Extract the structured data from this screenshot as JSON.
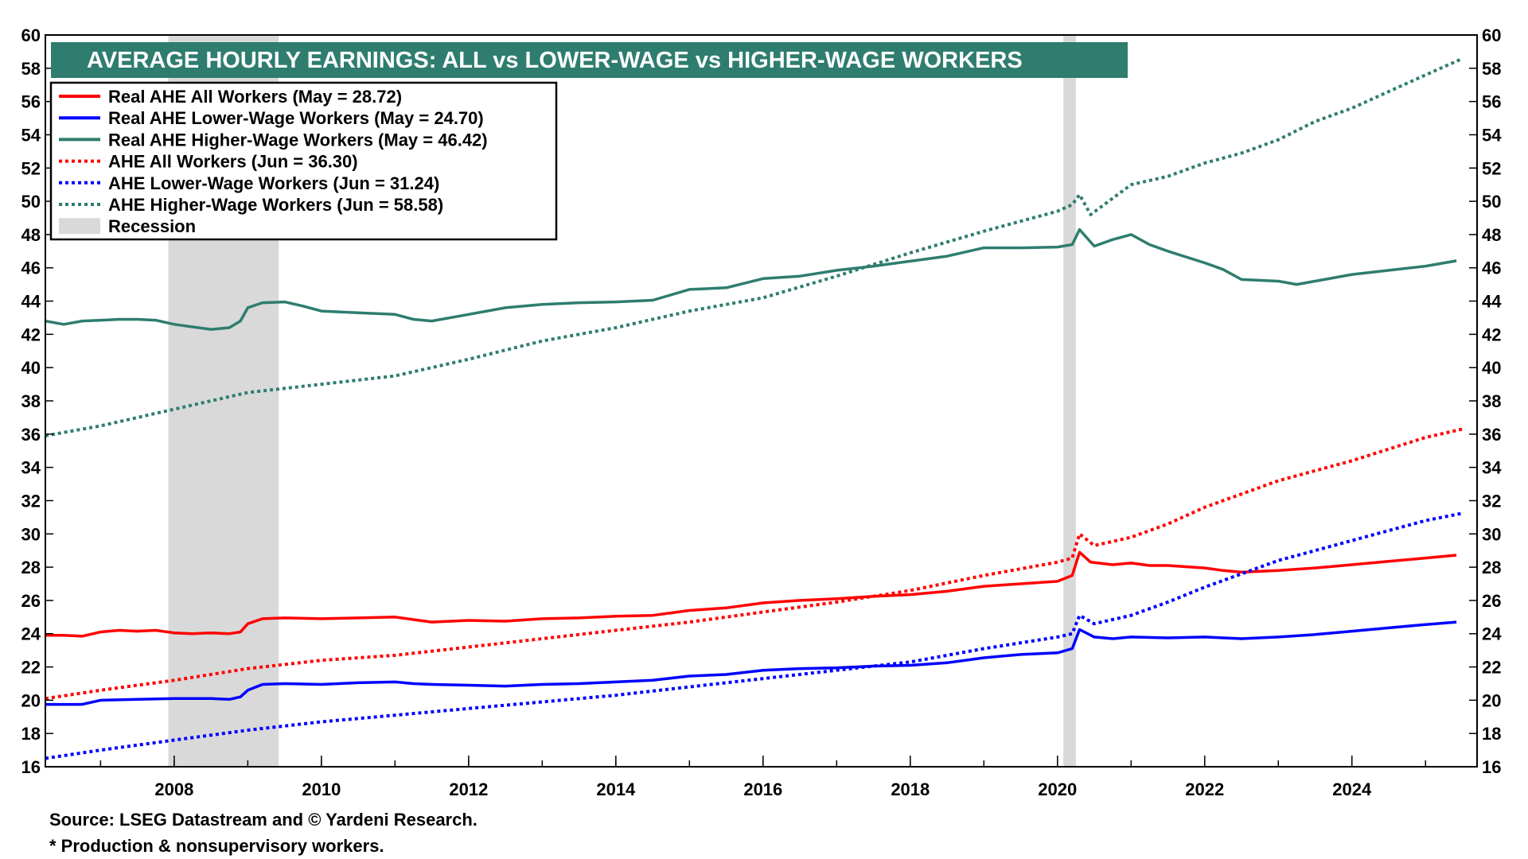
{
  "chart_data": {
    "type": "line",
    "title": "AVERAGE HOURLY EARNINGS: ALL vs LOWER-WAGE vs HIGHER-WAGE WORKERS",
    "ylim": [
      16,
      60
    ],
    "y_ticks": [
      "16",
      "18",
      "20",
      "22",
      "24",
      "26",
      "28",
      "30",
      "32",
      "34",
      "36",
      "38",
      "40",
      "42",
      "44",
      "46",
      "48",
      "50",
      "52",
      "54",
      "56",
      "58",
      "60"
    ],
    "xlim": [
      2006.25,
      2025.7
    ],
    "x_ticks": [
      "2008",
      "2010",
      "2012",
      "2014",
      "2016",
      "2018",
      "2020",
      "2022",
      "2024"
    ],
    "grid": false,
    "legend_position": "top-left",
    "recessions": [
      [
        2007.92,
        2009.42
      ],
      [
        2020.08,
        2020.25
      ]
    ],
    "series": [
      {
        "name": "Real AHE All Workers  (May = 28.72)",
        "color": "#ff0000",
        "style": "solid",
        "points": [
          [
            2006.25,
            23.9
          ],
          [
            2006.5,
            23.9
          ],
          [
            2006.75,
            23.85
          ],
          [
            2007,
            24.1
          ],
          [
            2007.25,
            24.2
          ],
          [
            2007.5,
            24.15
          ],
          [
            2007.75,
            24.2
          ],
          [
            2008,
            24.05
          ],
          [
            2008.25,
            24.0
          ],
          [
            2008.5,
            24.05
          ],
          [
            2008.75,
            24.0
          ],
          [
            2008.9,
            24.1
          ],
          [
            2009.0,
            24.6
          ],
          [
            2009.2,
            24.9
          ],
          [
            2009.5,
            24.95
          ],
          [
            2010,
            24.9
          ],
          [
            2010.5,
            24.95
          ],
          [
            2011,
            25.0
          ],
          [
            2011.25,
            24.85
          ],
          [
            2011.5,
            24.7
          ],
          [
            2012,
            24.8
          ],
          [
            2012.5,
            24.75
          ],
          [
            2013,
            24.9
          ],
          [
            2013.5,
            24.95
          ],
          [
            2014,
            25.05
          ],
          [
            2014.5,
            25.1
          ],
          [
            2015,
            25.4
          ],
          [
            2015.5,
            25.55
          ],
          [
            2016,
            25.85
          ],
          [
            2016.5,
            26.0
          ],
          [
            2017,
            26.1
          ],
          [
            2017.5,
            26.25
          ],
          [
            2018,
            26.35
          ],
          [
            2018.5,
            26.55
          ],
          [
            2019,
            26.85
          ],
          [
            2019.5,
            27.0
          ],
          [
            2020.0,
            27.15
          ],
          [
            2020.2,
            27.5
          ],
          [
            2020.3,
            28.9
          ],
          [
            2020.45,
            28.3
          ],
          [
            2020.75,
            28.15
          ],
          [
            2021,
            28.25
          ],
          [
            2021.25,
            28.1
          ],
          [
            2021.5,
            28.1
          ],
          [
            2022,
            27.95
          ],
          [
            2022.25,
            27.8
          ],
          [
            2022.5,
            27.7
          ],
          [
            2023,
            27.8
          ],
          [
            2023.5,
            27.95
          ],
          [
            2024,
            28.15
          ],
          [
            2024.5,
            28.35
          ],
          [
            2025,
            28.55
          ],
          [
            2025.42,
            28.72
          ]
        ]
      },
      {
        "name": "Real AHE Lower-Wage Workers (May = 24.70)",
        "color": "#0000ff",
        "style": "solid",
        "points": [
          [
            2006.25,
            19.75
          ],
          [
            2006.75,
            19.75
          ],
          [
            2007,
            20.0
          ],
          [
            2007.5,
            20.05
          ],
          [
            2008,
            20.1
          ],
          [
            2008.5,
            20.1
          ],
          [
            2008.75,
            20.05
          ],
          [
            2008.9,
            20.2
          ],
          [
            2009.0,
            20.6
          ],
          [
            2009.2,
            20.95
          ],
          [
            2009.5,
            21.0
          ],
          [
            2010,
            20.95
          ],
          [
            2010.5,
            21.05
          ],
          [
            2011,
            21.1
          ],
          [
            2011.25,
            21.0
          ],
          [
            2011.5,
            20.95
          ],
          [
            2012,
            20.9
          ],
          [
            2012.5,
            20.85
          ],
          [
            2013,
            20.95
          ],
          [
            2013.5,
            21.0
          ],
          [
            2014,
            21.1
          ],
          [
            2014.5,
            21.2
          ],
          [
            2015,
            21.45
          ],
          [
            2015.5,
            21.55
          ],
          [
            2016,
            21.8
          ],
          [
            2016.5,
            21.9
          ],
          [
            2017,
            21.95
          ],
          [
            2017.5,
            22.05
          ],
          [
            2018,
            22.1
          ],
          [
            2018.5,
            22.25
          ],
          [
            2019,
            22.55
          ],
          [
            2019.5,
            22.75
          ],
          [
            2020.0,
            22.85
          ],
          [
            2020.2,
            23.1
          ],
          [
            2020.3,
            24.25
          ],
          [
            2020.5,
            23.8
          ],
          [
            2020.75,
            23.7
          ],
          [
            2021,
            23.8
          ],
          [
            2021.5,
            23.75
          ],
          [
            2022,
            23.8
          ],
          [
            2022.5,
            23.7
          ],
          [
            2023,
            23.8
          ],
          [
            2023.5,
            23.95
          ],
          [
            2024,
            24.15
          ],
          [
            2024.5,
            24.35
          ],
          [
            2025,
            24.55
          ],
          [
            2025.42,
            24.7
          ]
        ]
      },
      {
        "name": "Real AHE Higher-Wage Workers (May = 46.42)",
        "color": "#2e7d6f",
        "style": "solid",
        "points": [
          [
            2006.25,
            42.8
          ],
          [
            2006.5,
            42.6
          ],
          [
            2006.75,
            42.8
          ],
          [
            2007,
            42.85
          ],
          [
            2007.25,
            42.9
          ],
          [
            2007.5,
            42.9
          ],
          [
            2007.75,
            42.85
          ],
          [
            2008,
            42.6
          ],
          [
            2008.25,
            42.45
          ],
          [
            2008.5,
            42.3
          ],
          [
            2008.75,
            42.4
          ],
          [
            2008.9,
            42.8
          ],
          [
            2009.0,
            43.6
          ],
          [
            2009.2,
            43.9
          ],
          [
            2009.5,
            43.95
          ],
          [
            2009.75,
            43.7
          ],
          [
            2010,
            43.4
          ],
          [
            2010.5,
            43.3
          ],
          [
            2011,
            43.2
          ],
          [
            2011.25,
            42.9
          ],
          [
            2011.5,
            42.8
          ],
          [
            2012,
            43.2
          ],
          [
            2012.5,
            43.6
          ],
          [
            2013,
            43.8
          ],
          [
            2013.5,
            43.9
          ],
          [
            2014,
            43.95
          ],
          [
            2014.5,
            44.05
          ],
          [
            2015,
            44.7
          ],
          [
            2015.5,
            44.8
          ],
          [
            2016,
            45.35
          ],
          [
            2016.5,
            45.5
          ],
          [
            2017,
            45.85
          ],
          [
            2017.5,
            46.1
          ],
          [
            2018,
            46.4
          ],
          [
            2018.5,
            46.7
          ],
          [
            2019,
            47.2
          ],
          [
            2019.5,
            47.2
          ],
          [
            2020.0,
            47.25
          ],
          [
            2020.2,
            47.4
          ],
          [
            2020.3,
            48.3
          ],
          [
            2020.5,
            47.3
          ],
          [
            2020.75,
            47.7
          ],
          [
            2021,
            48.0
          ],
          [
            2021.25,
            47.4
          ],
          [
            2021.5,
            47.0
          ],
          [
            2022,
            46.3
          ],
          [
            2022.25,
            45.9
          ],
          [
            2022.5,
            45.3
          ],
          [
            2023,
            45.2
          ],
          [
            2023.25,
            45.0
          ],
          [
            2023.5,
            45.2
          ],
          [
            2024,
            45.6
          ],
          [
            2024.5,
            45.85
          ],
          [
            2025,
            46.1
          ],
          [
            2025.42,
            46.42
          ]
        ]
      },
      {
        "name": "AHE All Workers  (Jun = 36.30)",
        "color": "#ff0000",
        "style": "dotted",
        "points": [
          [
            2006.25,
            20.1
          ],
          [
            2007,
            20.6
          ],
          [
            2008,
            21.2
          ],
          [
            2009,
            21.9
          ],
          [
            2010,
            22.4
          ],
          [
            2011,
            22.7
          ],
          [
            2012,
            23.2
          ],
          [
            2013,
            23.7
          ],
          [
            2014,
            24.2
          ],
          [
            2015,
            24.7
          ],
          [
            2016,
            25.3
          ],
          [
            2017,
            25.9
          ],
          [
            2018,
            26.6
          ],
          [
            2019,
            27.5
          ],
          [
            2020.0,
            28.3
          ],
          [
            2020.2,
            28.55
          ],
          [
            2020.3,
            30.0
          ],
          [
            2020.5,
            29.3
          ],
          [
            2021,
            29.8
          ],
          [
            2021.5,
            30.6
          ],
          [
            2022,
            31.6
          ],
          [
            2022.5,
            32.4
          ],
          [
            2023,
            33.2
          ],
          [
            2023.5,
            33.8
          ],
          [
            2024,
            34.4
          ],
          [
            2024.5,
            35.1
          ],
          [
            2025,
            35.8
          ],
          [
            2025.5,
            36.3
          ]
        ]
      },
      {
        "name": "AHE Lower-Wage Workers  (Jun = 31.24)",
        "color": "#0000ff",
        "style": "dotted",
        "points": [
          [
            2006.25,
            16.5
          ],
          [
            2007,
            17.0
          ],
          [
            2008,
            17.6
          ],
          [
            2009,
            18.2
          ],
          [
            2010,
            18.7
          ],
          [
            2011,
            19.1
          ],
          [
            2012,
            19.5
          ],
          [
            2013,
            19.9
          ],
          [
            2014,
            20.3
          ],
          [
            2015,
            20.8
          ],
          [
            2016,
            21.3
          ],
          [
            2017,
            21.8
          ],
          [
            2018,
            22.3
          ],
          [
            2019,
            23.1
          ],
          [
            2020.0,
            23.8
          ],
          [
            2020.2,
            24.0
          ],
          [
            2020.3,
            25.1
          ],
          [
            2020.5,
            24.6
          ],
          [
            2021,
            25.1
          ],
          [
            2021.5,
            25.9
          ],
          [
            2022,
            26.8
          ],
          [
            2022.5,
            27.6
          ],
          [
            2023,
            28.4
          ],
          [
            2023.5,
            29.0
          ],
          [
            2024,
            29.6
          ],
          [
            2024.5,
            30.2
          ],
          [
            2025,
            30.8
          ],
          [
            2025.5,
            31.24
          ]
        ]
      },
      {
        "name": "AHE Higher-Wage Workers  (Jun = 58.58)",
        "color": "#2e7d6f",
        "style": "dotted",
        "points": [
          [
            2006.25,
            35.9
          ],
          [
            2007,
            36.5
          ],
          [
            2008,
            37.5
          ],
          [
            2009,
            38.5
          ],
          [
            2010,
            39.0
          ],
          [
            2011,
            39.5
          ],
          [
            2012,
            40.5
          ],
          [
            2013,
            41.6
          ],
          [
            2014,
            42.4
          ],
          [
            2015,
            43.4
          ],
          [
            2016,
            44.2
          ],
          [
            2017,
            45.5
          ],
          [
            2018,
            46.9
          ],
          [
            2019,
            48.2
          ],
          [
            2020.0,
            49.4
          ],
          [
            2020.2,
            49.8
          ],
          [
            2020.3,
            50.4
          ],
          [
            2020.45,
            49.2
          ],
          [
            2021,
            51.0
          ],
          [
            2021.5,
            51.5
          ],
          [
            2022,
            52.3
          ],
          [
            2022.5,
            52.9
          ],
          [
            2023,
            53.7
          ],
          [
            2023.5,
            54.8
          ],
          [
            2024,
            55.6
          ],
          [
            2024.5,
            56.6
          ],
          [
            2025,
            57.6
          ],
          [
            2025.5,
            58.58
          ]
        ]
      }
    ],
    "legend_recession_label": "Recession"
  },
  "footnotes": {
    "source": "Source: LSEG Datastream and © Yardeni Research.",
    "note": "* Production & nonsupervisory workers."
  },
  "colors": {
    "title_bg": "#2e7d6f",
    "recession": "#d9d9d9"
  }
}
